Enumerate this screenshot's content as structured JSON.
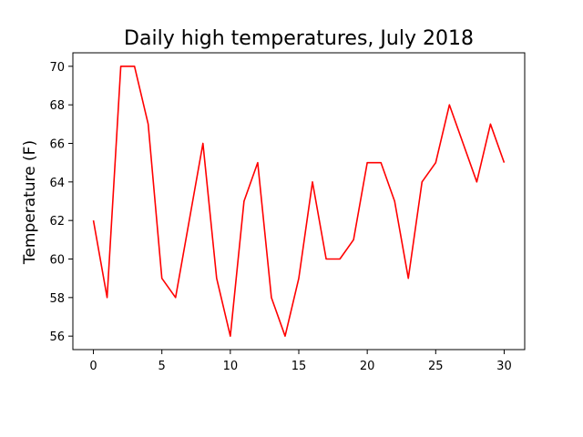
{
  "chart_data": {
    "type": "line",
    "title": "Daily high temperatures, July 2018",
    "xlabel": "",
    "ylabel": "Temperature (F)",
    "x": [
      0,
      1,
      2,
      3,
      4,
      5,
      6,
      7,
      8,
      9,
      10,
      11,
      12,
      13,
      14,
      15,
      16,
      17,
      18,
      19,
      20,
      21,
      22,
      23,
      24,
      25,
      26,
      27,
      28,
      29,
      30
    ],
    "series": [
      {
        "values": [
          62,
          58,
          70,
          70,
          67,
          59,
          58,
          62,
          66,
          59,
          56,
          63,
          65,
          58,
          56,
          59,
          64,
          60,
          60,
          61,
          65,
          65,
          63,
          59,
          64,
          65,
          68,
          66,
          64,
          67,
          65
        ],
        "color": "#ff0000"
      }
    ],
    "xlim": [
      -1.5,
      31.5
    ],
    "ylim": [
      55.3,
      70.7
    ],
    "xticks": [
      0,
      5,
      10,
      15,
      20,
      25,
      30
    ],
    "yticks": [
      56,
      58,
      60,
      62,
      64,
      66,
      68,
      70
    ],
    "grid": false,
    "legend": "none"
  }
}
